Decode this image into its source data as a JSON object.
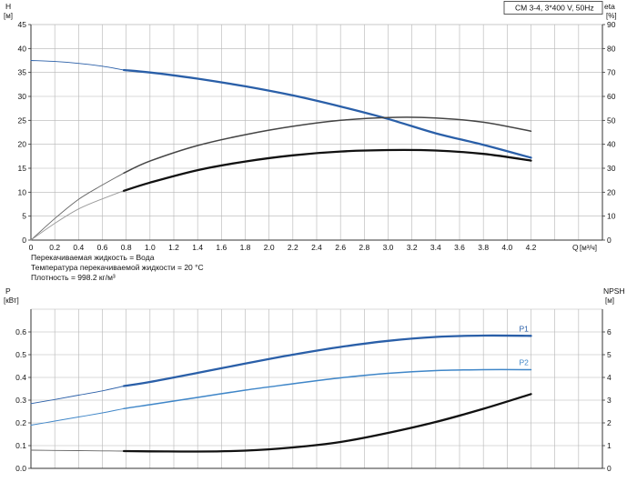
{
  "header": {
    "model_label": "CM 3-4, 3*400 V, 50Hz"
  },
  "notes": {
    "liquid": "Перекачиваемая жидкость = Вода",
    "temperature": "Температура перекачиваемой жидкости = 20 °C",
    "density": "Плотность = 998.2 кг/м³"
  },
  "chart_data": [
    {
      "type": "line",
      "title": "",
      "xlabel": "Q [м³/ч]",
      "x_label_main": "Q",
      "x_label_unit": "[м³/ч]",
      "xlim": [
        0,
        4.8
      ],
      "xticks": [
        0,
        0.2,
        0.4,
        0.6,
        0.8,
        1.0,
        1.2,
        1.4,
        1.6,
        1.8,
        2.0,
        2.2,
        2.4,
        2.6,
        2.8,
        3.0,
        3.2,
        3.4,
        3.6,
        3.8,
        4.0,
        4.2
      ],
      "xtick_labels": [
        "0",
        "0.2",
        "0.4",
        "0.6",
        "0.8",
        "1.0",
        "1.2",
        "1.4",
        "1.6",
        "1.8",
        "2.0",
        "2.2",
        "2.4",
        "2.6",
        "2.8",
        "3.0",
        "3.2",
        "3.4",
        "3.6",
        "3.8",
        "4.0",
        "4.2"
      ],
      "y_left": {
        "label_main": "H",
        "label_unit": "[м]",
        "lim": [
          0,
          45
        ],
        "ticks": [
          0,
          5,
          10,
          15,
          20,
          25,
          30,
          35,
          40,
          45
        ]
      },
      "y_right": {
        "label_main": "eta",
        "label_unit": "[%]",
        "lim": [
          0,
          90
        ],
        "ticks": [
          0,
          10,
          20,
          30,
          40,
          50,
          60,
          70,
          80,
          90
        ],
        "tick_labels": [
          "0",
          "10",
          "20",
          "30",
          "40",
          "50",
          "60",
          "70",
          "80",
          "90"
        ]
      },
      "grid": true,
      "series": [
        {
          "axis": "left",
          "color": "#2a5fa8",
          "x": [
            0,
            0.2,
            0.4,
            0.6,
            0.78
          ],
          "y": [
            37.5,
            37.3,
            36.9,
            36.3,
            35.5
          ],
          "style": "thin"
        },
        {
          "axis": "left",
          "color": "#2a5fa8",
          "x": [
            0.78,
            1.0,
            1.4,
            1.8,
            2.2,
            2.6,
            3.0,
            3.4,
            3.8,
            4.2
          ],
          "y": [
            35.5,
            35.0,
            33.7,
            32.1,
            30.2,
            27.9,
            25.3,
            22.3,
            19.9,
            17.2
          ],
          "style": "bold"
        },
        {
          "axis": "right",
          "color": "#666666",
          "x": [
            0,
            0.2,
            0.4,
            0.6,
            0.78
          ],
          "y": [
            0,
            9,
            17,
            23,
            28
          ],
          "style": "thin"
        },
        {
          "axis": "right",
          "color": "#444444",
          "x": [
            0.78,
            1.0,
            1.4,
            1.8,
            2.2,
            2.6,
            3.0,
            3.4,
            3.8,
            4.2
          ],
          "y": [
            28,
            33,
            39.5,
            44,
            47.5,
            50,
            51.2,
            51,
            49.2,
            45.5
          ],
          "style": "medium"
        },
        {
          "axis": "left",
          "color": "#999999",
          "x": [
            0,
            0.2,
            0.4,
            0.6,
            0.78
          ],
          "y": [
            0,
            3.5,
            6.5,
            8.6,
            10.3
          ],
          "style": "thin"
        },
        {
          "axis": "left",
          "color": "#111111",
          "x": [
            0.78,
            1.0,
            1.4,
            1.8,
            2.2,
            2.6,
            3.0,
            3.4,
            3.8,
            4.2
          ],
          "y": [
            10.3,
            12.0,
            14.6,
            16.4,
            17.7,
            18.5,
            18.8,
            18.7,
            18.0,
            16.6
          ],
          "style": "bold"
        }
      ]
    },
    {
      "type": "line",
      "title": "",
      "xlim": [
        0,
        4.8
      ],
      "y_left": {
        "label_main": "P",
        "label_unit": "[кВт]",
        "lim": [
          0,
          0.7
        ],
        "ticks": [
          0,
          0.1,
          0.2,
          0.3,
          0.4,
          0.5,
          0.6
        ],
        "tick_labels": [
          "0.0",
          "0.1",
          "0.2",
          "0.3",
          "0.4",
          "0.5",
          "0.6"
        ]
      },
      "y_right": {
        "label_main": "NPSH",
        "label_unit": "[м]",
        "lim": [
          0,
          7
        ],
        "ticks": [
          0,
          1,
          2,
          3,
          4,
          5,
          6
        ],
        "tick_labels": [
          "0",
          "1",
          "2",
          "3",
          "4",
          "5",
          "6"
        ]
      },
      "grid": true,
      "series": [
        {
          "name": "P1",
          "axis": "left",
          "color": "#2a5fa8",
          "x": [
            0,
            0.2,
            0.4,
            0.6,
            0.78
          ],
          "y": [
            0.285,
            0.303,
            0.322,
            0.341,
            0.362
          ],
          "style": "thin"
        },
        {
          "axis": "left",
          "color": "#2a5fa8",
          "x": [
            0.78,
            1.0,
            1.4,
            1.8,
            2.2,
            2.6,
            3.0,
            3.4,
            3.8,
            4.2
          ],
          "y": [
            0.362,
            0.38,
            0.42,
            0.461,
            0.5,
            0.534,
            0.561,
            0.578,
            0.584,
            0.583
          ],
          "style": "bold"
        },
        {
          "name": "P2",
          "axis": "left",
          "color": "#3f86c8",
          "x": [
            0,
            0.2,
            0.4,
            0.6,
            0.78
          ],
          "y": [
            0.19,
            0.208,
            0.226,
            0.244,
            0.263
          ],
          "style": "thin"
        },
        {
          "axis": "left",
          "color": "#3f86c8",
          "x": [
            0.78,
            1.0,
            1.4,
            1.8,
            2.2,
            2.6,
            3.0,
            3.4,
            3.8,
            4.2
          ],
          "y": [
            0.263,
            0.28,
            0.312,
            0.344,
            0.372,
            0.398,
            0.418,
            0.43,
            0.434,
            0.434
          ],
          "style": "medium"
        },
        {
          "axis": "right",
          "color": "#666666",
          "x": [
            0,
            0.2,
            0.4,
            0.6,
            0.78
          ],
          "y": [
            0.8,
            0.79,
            0.78,
            0.77,
            0.76
          ],
          "style": "thin"
        },
        {
          "axis": "right",
          "color": "#111111",
          "x": [
            0.78,
            1.0,
            1.4,
            1.8,
            2.2,
            2.6,
            3.0,
            3.4,
            3.8,
            4.2
          ],
          "y": [
            0.76,
            0.75,
            0.74,
            0.78,
            0.92,
            1.16,
            1.56,
            2.04,
            2.62,
            3.27
          ],
          "style": "bold"
        }
      ]
    }
  ]
}
